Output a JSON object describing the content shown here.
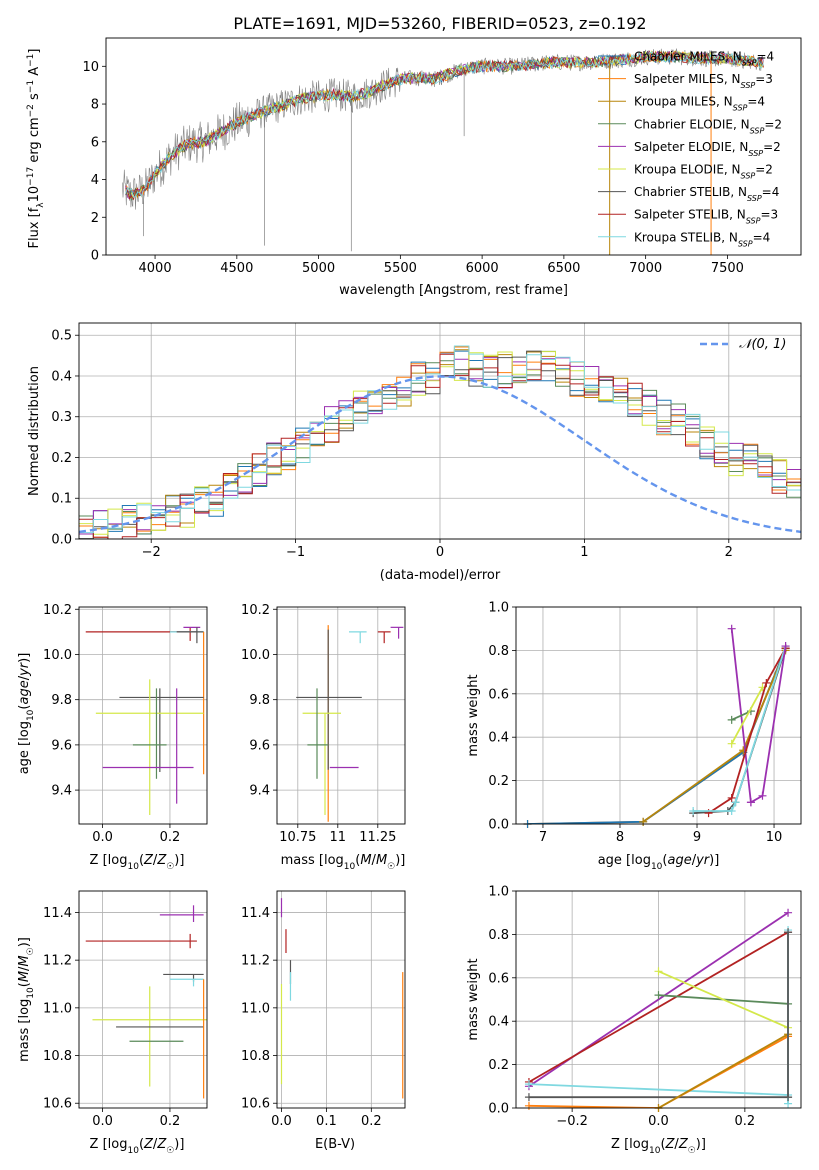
{
  "figure": {
    "title": "PLATE=1691, MJD=53260, FIBERID=0523, z=0.192"
  },
  "colors": {
    "Chabrier MILES": "#1f77b4",
    "Salpeter MILES": "#ff7f0e",
    "Kroupa MILES": "#b8860b",
    "Chabrier ELODIE": "#5a8a5a",
    "Salpeter ELODIE": "#9b30b0",
    "Kroupa ELODIE": "#d4e84a",
    "Chabrier STELIB": "#555555",
    "Salpeter STELIB": "#b22222",
    "Kroupa STELIB": "#7fd8e0",
    "gaussian": "#6495ed",
    "grid": "#b0b0b0",
    "data": "#808080"
  },
  "chart_data": [
    {
      "id": "spectrum",
      "type": "line",
      "title": "PLATE=1691, MJD=53260, FIBERID=0523, z=0.192",
      "xlabel": "wavelength [Angstrom, rest frame]",
      "ylabel": "Flux [f_λ 10^-17 erg cm^-2 s^-1 A^-1]",
      "xlim": [
        3700,
        7950
      ],
      "ylim": [
        0,
        11.5
      ],
      "xticks": [
        4000,
        4500,
        5000,
        5500,
        6000,
        6500,
        7000,
        7500
      ],
      "yticks": [
        0,
        2,
        4,
        6,
        8,
        10
      ],
      "grid": false,
      "legend_position": "upper right",
      "continuum": {
        "x": [
          3800,
          3850,
          3900,
          3950,
          4000,
          4100,
          4200,
          4300,
          4400,
          4500,
          4600,
          4700,
          4800,
          4900,
          5000,
          5100,
          5200,
          5300,
          5400,
          5500,
          5600,
          5700,
          5800,
          5900,
          6000,
          6200,
          6400,
          6600,
          6800,
          7000,
          7200,
          7400,
          7500,
          7600,
          7700
        ],
        "y": [
          3.5,
          3.2,
          3.3,
          3.6,
          4.3,
          5.3,
          5.9,
          6.0,
          6.5,
          7.0,
          7.4,
          7.7,
          8.0,
          8.3,
          8.4,
          8.5,
          8.4,
          8.6,
          9.0,
          9.3,
          9.4,
          9.3,
          9.6,
          9.9,
          10.0,
          10.0,
          10.2,
          10.2,
          10.3,
          10.5,
          10.5,
          10.4,
          10.4,
          10.3,
          10.2
        ]
      },
      "series": [
        {
          "name": "Chabrier MILES",
          "nssp": "4"
        },
        {
          "name": "Salpeter MILES",
          "nssp": "3"
        },
        {
          "name": "Kroupa MILES",
          "nssp": "4"
        },
        {
          "name": "Chabrier ELODIE",
          "nssp": "2"
        },
        {
          "name": "Salpeter ELODIE",
          "nssp": "2"
        },
        {
          "name": "Kroupa ELODIE",
          "nssp": "2"
        },
        {
          "name": "Chabrier STELIB",
          "nssp": "4"
        },
        {
          "name": "Salpeter STELIB",
          "nssp": "3"
        },
        {
          "name": "Kroupa STELIB",
          "nssp": "4"
        }
      ]
    },
    {
      "id": "residuals",
      "type": "line",
      "xlabel": "(data-model)/error",
      "ylabel": "Normed distribution",
      "xlim": [
        -2.5,
        2.5
      ],
      "ylim": [
        0,
        0.53
      ],
      "xticks": [
        -2,
        -1,
        0,
        1,
        2
      ],
      "yticks": [
        0.0,
        0.1,
        0.2,
        0.3,
        0.4,
        0.5
      ],
      "grid": true,
      "legend": [
        {
          "name": "𝒩(0, 1)",
          "style": "dashed"
        }
      ],
      "legend_position": "upper right",
      "bin_width": 0.1,
      "bin_start": -2.5,
      "histogram_mean": [
        0.02,
        0.03,
        0.04,
        0.05,
        0.055,
        0.06,
        0.065,
        0.07,
        0.085,
        0.1,
        0.12,
        0.14,
        0.17,
        0.2,
        0.215,
        0.23,
        0.25,
        0.28,
        0.3,
        0.32,
        0.34,
        0.36,
        0.37,
        0.39,
        0.4,
        0.42,
        0.43,
        0.42,
        0.41,
        0.415,
        0.42,
        0.43,
        0.42,
        0.41,
        0.395,
        0.39,
        0.37,
        0.35,
        0.34,
        0.32,
        0.3,
        0.29,
        0.27,
        0.24,
        0.22,
        0.2,
        0.19,
        0.18,
        0.15,
        0.13,
        0.11,
        0.1,
        0.08,
        0.07,
        0.06,
        0.055,
        0.05,
        0.04,
        0.03,
        0.025,
        0.02
      ]
    },
    {
      "id": "age_vs_Z",
      "type": "scatter",
      "xlabel": "Z [log10(Z/Z☉)]",
      "ylabel": "age  [log10(age/yr)]",
      "xlim": [
        -0.07,
        0.31
      ],
      "ylim": [
        9.25,
        10.21
      ],
      "xticks": [
        0.0,
        0.2
      ],
      "yticks": [
        9.4,
        9.6,
        9.8,
        10.0,
        10.2
      ],
      "grid": true,
      "points": [
        {
          "series": "Salpeter STELIB",
          "x": 0.26,
          "xerr": [
            0.31,
            0.02
          ],
          "y": 10.1,
          "yerr": [
            0.04,
            0.02
          ]
        },
        {
          "series": "Salpeter ELODIE",
          "x": 0.27,
          "xerr": [
            0.03,
            0.02
          ],
          "y": 10.12,
          "yerr": [
            0.0,
            0.0
          ]
        },
        {
          "series": "Kroupa STELIB",
          "x": 0.27,
          "xerr": [
            0.07,
            0.03
          ],
          "y": 10.1,
          "yerr": [
            0.0,
            0.0
          ]
        },
        {
          "series": "Chabrier STELIB",
          "x": 0.28,
          "xerr": [
            0.06,
            0.02
          ],
          "y": 10.1,
          "yerr": [
            0.05,
            0.02
          ]
        },
        {
          "series": "Salpeter MILES",
          "x": 0.3,
          "xerr": [
            0.0,
            0.0
          ],
          "y": 10.05,
          "yerr": [
            0.58,
            0.05
          ]
        },
        {
          "series": "Chabrier STELIB",
          "x": 0.17,
          "xerr": [
            0.12,
            0.13
          ],
          "y": 9.81,
          "yerr": [
            0.33,
            0.04
          ]
        },
        {
          "series": "Kroupa ELODIE",
          "x": 0.14,
          "xerr": [
            0.16,
            0.16
          ],
          "y": 9.74,
          "yerr": [
            0.45,
            0.15
          ]
        },
        {
          "series": "Chabrier ELODIE",
          "x": 0.16,
          "xerr": [
            0.07,
            0.03
          ],
          "y": 9.6,
          "yerr": [
            0.15,
            0.25
          ]
        },
        {
          "series": "Salpeter ELODIE",
          "x": 0.22,
          "xerr": [
            0.22,
            0.05
          ],
          "y": 9.5,
          "yerr": [
            0.16,
            0.35
          ]
        }
      ]
    },
    {
      "id": "age_vs_mass",
      "type": "scatter",
      "xlabel": "mass [log10(M/M☉)]",
      "ylabel": "",
      "xlim": [
        10.62,
        11.42
      ],
      "ylim": [
        9.25,
        10.21
      ],
      "xticks": [
        10.75,
        11.0,
        11.25
      ],
      "yticks": [
        9.4,
        9.6,
        9.8,
        10.0,
        10.2
      ],
      "grid": true,
      "points": [
        {
          "series": "Salpeter ELODIE",
          "x": 11.38,
          "xerr": [
            0.05,
            0.03
          ],
          "y": 10.12,
          "yerr": [
            0.05,
            0.0
          ]
        },
        {
          "series": "Salpeter STELIB",
          "x": 11.29,
          "xerr": [
            0.04,
            0.04
          ],
          "y": 10.1,
          "yerr": [
            0.05,
            0.0
          ]
        },
        {
          "series": "Kroupa STELIB",
          "x": 11.14,
          "xerr": [
            0.07,
            0.04
          ],
          "y": 10.1,
          "yerr": [
            0.05,
            0.0
          ]
        },
        {
          "series": "Salpeter MILES",
          "x": 10.94,
          "xerr": [
            0.0,
            0.0
          ],
          "y": 9.81,
          "yerr": [
            0.55,
            0.32
          ]
        },
        {
          "series": "Chabrier STELIB",
          "x": 10.94,
          "xerr": [
            0.2,
            0.21
          ],
          "y": 9.81,
          "yerr": [
            0.32,
            0.3
          ]
        },
        {
          "series": "Kroupa ELODIE",
          "x": 10.92,
          "xerr": [
            0.14,
            0.1
          ],
          "y": 9.74,
          "yerr": [
            0.45,
            0.0
          ]
        },
        {
          "series": "Chabrier ELODIE",
          "x": 10.87,
          "xerr": [
            0.06,
            0.07
          ],
          "y": 9.6,
          "yerr": [
            0.15,
            0.25
          ]
        },
        {
          "series": "Salpeter ELODIE",
          "x": 11.02,
          "xerr": [
            0.07,
            0.11
          ],
          "y": 9.5,
          "yerr": [
            0.0,
            0.0
          ]
        }
      ]
    },
    {
      "id": "mass_weight_vs_age",
      "type": "line",
      "xlabel": "age  [log10(age/yr)]",
      "ylabel": "mass weight",
      "xlim": [
        6.65,
        10.35
      ],
      "ylim": [
        0,
        1.0
      ],
      "xticks": [
        7,
        8,
        9,
        10
      ],
      "yticks": [
        0.0,
        0.2,
        0.4,
        0.6,
        0.8,
        1.0
      ],
      "grid": true,
      "series": [
        {
          "name": "Salpeter MILES",
          "x": [
            6.8,
            8.3,
            9.6,
            10.15
          ],
          "y": [
            0.0,
            0.01,
            0.33,
            0.81
          ]
        },
        {
          "name": "Chabrier MILES",
          "x": [
            6.8,
            8.3,
            9.6,
            10.15
          ],
          "y": [
            0.0,
            0.01,
            0.33,
            0.81
          ]
        },
        {
          "name": "Kroupa MILES",
          "x": [
            8.3,
            9.6,
            10.15
          ],
          "y": [
            0.01,
            0.34,
            0.8
          ]
        },
        {
          "name": "Salpeter ELODIE",
          "x": [
            9.45,
            9.7
          ],
          "y": [
            0.9,
            0.1
          ]
        },
        {
          "name": "Chabrier ELODIE",
          "x": [
            9.45,
            9.7
          ],
          "y": [
            0.48,
            0.52
          ]
        },
        {
          "name": "Kroupa ELODIE",
          "x": [
            9.45,
            9.85
          ],
          "y": [
            0.37,
            0.63
          ]
        },
        {
          "name": "Chabrier STELIB",
          "x": [
            8.95,
            9.4,
            9.5,
            10.15
          ],
          "y": [
            0.05,
            0.06,
            0.1,
            0.81
          ]
        },
        {
          "name": "Salpeter STELIB",
          "x": [
            9.15,
            9.45,
            9.9,
            10.15
          ],
          "y": [
            0.05,
            0.12,
            0.65,
            0.81
          ]
        },
        {
          "name": "Kroupa STELIB",
          "x": [
            8.95,
            9.45,
            9.5,
            10.15
          ],
          "y": [
            0.06,
            0.06,
            0.1,
            0.82
          ]
        },
        {
          "name": "Salpeter ELODIE",
          "x": [
            9.7,
            9.85,
            10.15
          ],
          "y": [
            0.1,
            0.13,
            0.82
          ]
        }
      ]
    },
    {
      "id": "mass_vs_Z",
      "type": "scatter",
      "xlabel": "Z [log10(Z/Z☉)]",
      "ylabel": "mass [log10(M/M☉)]",
      "xlim": [
        -0.07,
        0.31
      ],
      "ylim": [
        10.58,
        11.49
      ],
      "xticks": [
        0.0,
        0.2
      ],
      "yticks": [
        10.6,
        10.8,
        11.0,
        11.2,
        11.4
      ],
      "grid": true,
      "points": [
        {
          "series": "Salpeter ELODIE",
          "x": 0.27,
          "xerr": [
            0.1,
            0.03
          ],
          "y": 11.39,
          "yerr": [
            0.03,
            0.04
          ]
        },
        {
          "series": "Salpeter STELIB",
          "x": 0.26,
          "xerr": [
            0.31,
            0.02
          ],
          "y": 11.28,
          "yerr": [
            0.03,
            0.03
          ]
        },
        {
          "series": "Chabrier STELIB",
          "x": 0.27,
          "xerr": [
            0.09,
            0.03
          ],
          "y": 11.14,
          "yerr": [
            0.03,
            0.0
          ]
        },
        {
          "series": "Kroupa STELIB",
          "x": 0.27,
          "xerr": [
            0.07,
            0.03
          ],
          "y": 11.12,
          "yerr": [
            0.03,
            0.0
          ]
        },
        {
          "series": "Kroupa ELODIE",
          "x": 0.14,
          "xerr": [
            0.17,
            0.17
          ],
          "y": 10.95,
          "yerr": [
            0.28,
            0.14
          ]
        },
        {
          "series": "Chabrier STELIB",
          "x": 0.16,
          "xerr": [
            0.12,
            0.14
          ],
          "y": 10.92,
          "yerr": [
            0.0,
            0.0
          ]
        },
        {
          "series": "Salpeter MILES",
          "x": 0.3,
          "xerr": [
            0.0,
            0.0
          ],
          "y": 11.0,
          "yerr": [
            0.38,
            0.12
          ]
        },
        {
          "series": "Chabrier ELODIE",
          "x": 0.16,
          "xerr": [
            0.08,
            0.08
          ],
          "y": 10.86,
          "yerr": [
            0.0,
            0.0
          ]
        }
      ]
    },
    {
      "id": "mass_vs_ebv",
      "type": "scatter",
      "xlabel": "E(B-V)",
      "ylabel": "",
      "xlim": [
        -0.01,
        0.275
      ],
      "ylim": [
        10.58,
        11.49
      ],
      "xticks": [
        0.0,
        0.1,
        0.2
      ],
      "yticks": [
        10.6,
        10.8,
        11.0,
        11.2,
        11.4
      ],
      "grid": true,
      "points": [
        {
          "series": "Salpeter ELODIE",
          "x": 0.0,
          "y": 11.42,
          "yerr": [
            0.04,
            0.04
          ]
        },
        {
          "series": "Salpeter STELIB",
          "x": 0.01,
          "y": 11.28,
          "yerr": [
            0.05,
            0.05
          ]
        },
        {
          "series": "Chabrier STELIB",
          "x": 0.02,
          "y": 11.15,
          "yerr": [
            0.05,
            0.05
          ]
        },
        {
          "series": "Kroupa STELIB",
          "x": 0.02,
          "y": 11.09,
          "yerr": [
            0.06,
            0.06
          ]
        },
        {
          "series": "Kroupa ELODIE",
          "x": 0.0,
          "y": 10.9,
          "yerr": [
            0.22,
            0.2
          ]
        },
        {
          "series": "Salpeter MILES",
          "x": 0.27,
          "y": 10.9,
          "yerr": [
            0.28,
            0.25
          ]
        }
      ]
    },
    {
      "id": "mass_weight_vs_Z",
      "type": "line",
      "xlabel": "Z [log10(Z/Z☉)]",
      "ylabel": "mass weight",
      "xlim": [
        -0.33,
        0.33
      ],
      "ylim": [
        0,
        1.0
      ],
      "xticks": [
        -0.2,
        0.0,
        0.2
      ],
      "yticks": [
        0.0,
        0.2,
        0.4,
        0.6,
        0.8,
        1.0
      ],
      "grid": true,
      "series": [
        {
          "name": "Salpeter ELODIE",
          "x": [
            -0.3,
            0.3
          ],
          "y": [
            0.1,
            0.9
          ]
        },
        {
          "name": "Salpeter STELIB",
          "x": [
            -0.3,
            0.3
          ],
          "y": [
            0.12,
            0.81
          ]
        },
        {
          "name": "Chabrier ELODIE",
          "x": [
            0.0,
            0.3
          ],
          "y": [
            0.52,
            0.48
          ]
        },
        {
          "name": "Kroupa ELODIE",
          "x": [
            0.0,
            0.3
          ],
          "y": [
            0.63,
            0.37
          ]
        },
        {
          "name": "Kroupa STELIB",
          "x": [
            -0.3,
            0.3
          ],
          "y": [
            0.11,
            0.06
          ]
        },
        {
          "name": "Chabrier STELIB",
          "x": [
            -0.3,
            0.3
          ],
          "y": [
            0.05,
            0.05
          ]
        },
        {
          "name": "Salpeter MILES",
          "x": [
            -0.3,
            0.0,
            0.3
          ],
          "y": [
            0.01,
            0.0,
            0.33
          ]
        },
        {
          "name": "Kroupa MILES",
          "x": [
            0.0,
            0.3
          ],
          "y": [
            0.0,
            0.34
          ]
        },
        {
          "name": "Kroupa STELIB",
          "x": [
            0.3,
            0.3
          ],
          "y": [
            0.02,
            0.82
          ]
        },
        {
          "name": "Chabrier STELIB",
          "x": [
            0.3,
            0.3
          ],
          "y": [
            0.05,
            0.81
          ]
        }
      ]
    }
  ]
}
